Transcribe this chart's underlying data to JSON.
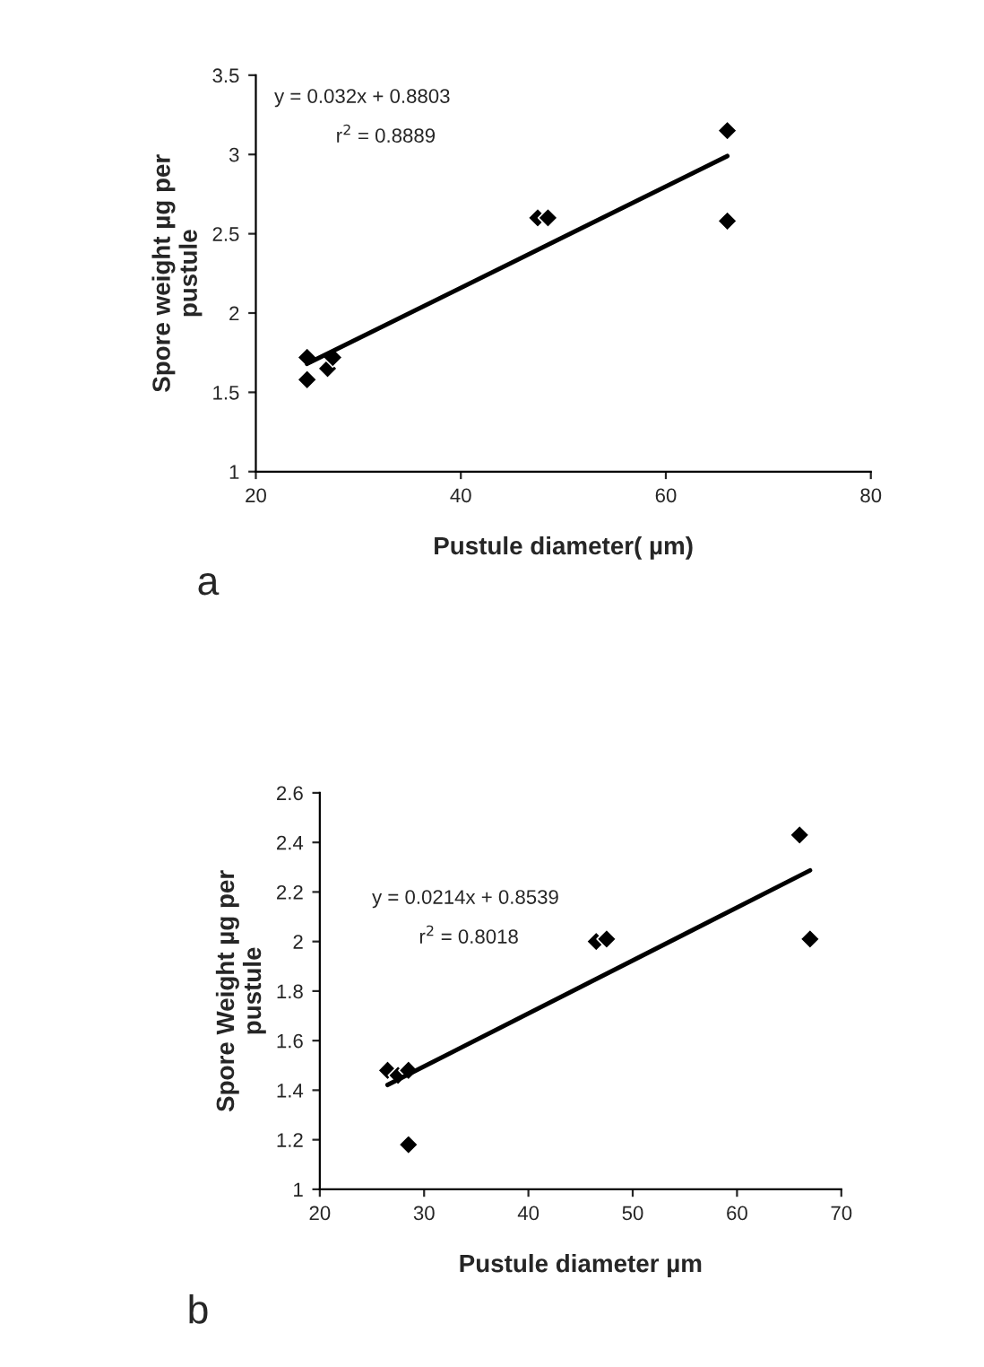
{
  "chart_data": [
    {
      "type": "scatter",
      "xlabel": "Pustule diameter( µm)",
      "ylabel": "Spore weight µg per pustule",
      "grid": false,
      "legend": false,
      "xlim": [
        20,
        80
      ],
      "xticks": [
        20,
        40,
        60,
        80
      ],
      "ylim": [
        1,
        3.5
      ],
      "yticks": [
        1,
        1.5,
        2,
        2.5,
        3,
        3.5
      ],
      "annotations": [
        "y = 0.032x + 0.8803",
        "r$^{2}$ = 0.8889",
        "a"
      ],
      "series": [
        {
          "marker": "diamond",
          "color": "#000000",
          "x": [
            25,
            25,
            27,
            27.5,
            47.5,
            48.5,
            66,
            66
          ],
          "values": [
            1.72,
            1.58,
            1.65,
            1.72,
            2.6,
            2.6,
            3.15,
            2.58
          ]
        },
        {
          "type": "line",
          "marker": "none",
          "color": "#000000",
          "x": [
            25,
            66
          ],
          "values": [
            1.68,
            2.99
          ]
        }
      ]
    },
    {
      "type": "scatter",
      "xlabel": "Pustule diameter µm",
      "ylabel": "Spore Weight µg per pustule",
      "grid": false,
      "legend": false,
      "xlim": [
        20,
        70
      ],
      "xticks": [
        20,
        30,
        40,
        50,
        60,
        70
      ],
      "ylim": [
        1,
        2.6
      ],
      "yticks": [
        1,
        1.2,
        1.4,
        1.6,
        1.8,
        2,
        2.2,
        2.4,
        2.6
      ],
      "annotations": [
        "y = 0.0214x + 0.8539",
        "r$^{2}$ = 0.8018",
        "b"
      ],
      "series": [
        {
          "marker": "diamond",
          "color": "#000000",
          "x": [
            26.5,
            27.5,
            28.5,
            28.5,
            46.5,
            47.5,
            66,
            67
          ],
          "values": [
            1.48,
            1.46,
            1.48,
            1.18,
            2.0,
            2.01,
            2.43,
            2.01
          ]
        },
        {
          "type": "line",
          "marker": "none",
          "color": "#000000",
          "x": [
            26.5,
            67
          ],
          "values": [
            1.421,
            2.287
          ]
        }
      ]
    }
  ]
}
